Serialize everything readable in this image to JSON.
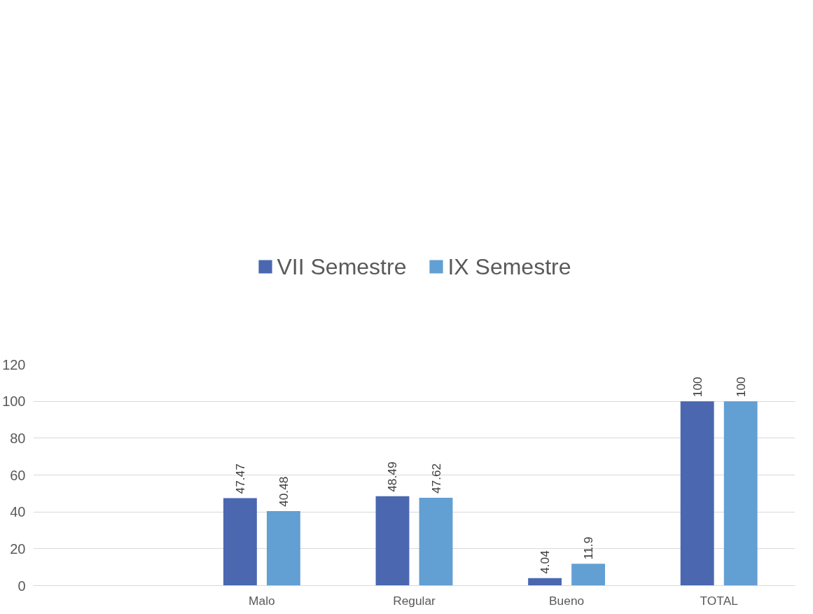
{
  "chart_data": {
    "type": "bar",
    "categories": [
      null,
      "Malo",
      "Regular",
      "Bueno",
      "TOTAL"
    ],
    "series": [
      {
        "name": "VII Semestre",
        "color": "#4a67b0",
        "values": [
          null,
          47.47,
          48.49,
          4.04,
          100
        ]
      },
      {
        "name": "IX Semestre",
        "color": "#629fd3",
        "values": [
          null,
          40.48,
          47.62,
          11.9,
          100
        ]
      }
    ],
    "ylim": [
      0,
      120
    ],
    "yticks": [
      0,
      20,
      40,
      60,
      80,
      100,
      120
    ],
    "grid": "y",
    "legend": "top",
    "data_labels": true
  }
}
